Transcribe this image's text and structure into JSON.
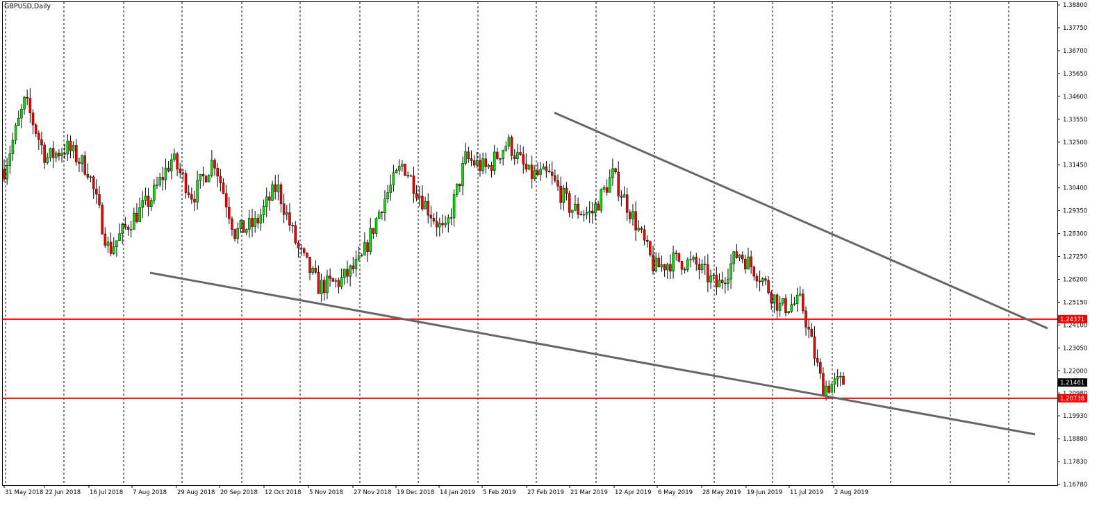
{
  "title": "GBPUSD,Daily",
  "colors": {
    "up": "#00e600",
    "down": "#ff0000",
    "wick": "#000000",
    "grid": "#000000",
    "hline": "#ff0000",
    "trendline": "#666666",
    "price_badge_bg": "#000000",
    "price_badge_fg": "#ffffff",
    "level_badge_bg": "#ff0000",
    "level_badge_fg": "#ffffff"
  },
  "chart_data": {
    "type": "candlestick",
    "symbol": "GBPUSD",
    "timeframe": "Daily",
    "ylim": [
      1.1675,
      1.3893
    ],
    "y_ticks": [
      "1.38800",
      "1.37750",
      "1.36700",
      "1.35650",
      "1.34600",
      "1.33550",
      "1.32500",
      "1.31450",
      "1.30400",
      "1.29350",
      "1.28300",
      "1.27250",
      "1.26200",
      "1.25150",
      "1.24100",
      "1.23050",
      "1.22000",
      "1.20980",
      "1.19930",
      "1.18880",
      "1.17830",
      "1.16780"
    ],
    "x_ticks": [
      "31 May 2018",
      "22 Jun 2018",
      "16 Jul 2018",
      "7 Aug 2018",
      "29 Aug 2018",
      "20 Sep 2018",
      "12 Oct 2018",
      "5 Nov 2018",
      "27 Nov 2018",
      "19 Dec 2018",
      "14 Jan 2019",
      "5 Feb 2019",
      "27 Feb 2019",
      "21 Mar 2019",
      "12 Apr 2019",
      "6 May 2019",
      "28 May 2019",
      "19 Jun 2019",
      "11 Jul 2019",
      "2 Aug 2019"
    ],
    "horizontal_levels": [
      {
        "label": "1.24371",
        "value": 1.24371
      },
      {
        "label": "1.20738",
        "value": 1.20738
      }
    ],
    "current_price": {
      "label": "1.21461",
      "value": 1.21461
    },
    "trendlines": [
      {
        "name": "upper",
        "start": {
          "x": "27 Feb 2019",
          "y": 1.3385
        },
        "end": {
          "x": "beyond 2 Aug 2019",
          "y": 1.2395
        }
      },
      {
        "name": "lower",
        "start": {
          "x": "7 Aug 2018",
          "y": 1.265
        },
        "end": {
          "x": "beyond 2 Aug 2019",
          "y": 1.1908
        }
      }
    ],
    "series_anchors": [
      [
        1.295,
        1.33
      ],
      [
        1.346,
        1.342
      ],
      [
        1.325,
        1.31
      ],
      [
        1.32,
        1.325
      ],
      [
        1.31,
        1.315
      ],
      [
        1.28,
        1.27
      ],
      [
        1.285,
        1.292
      ],
      [
        1.298,
        1.3
      ],
      [
        1.325,
        1.31
      ],
      [
        1.305,
        1.295
      ],
      [
        1.32,
        1.315
      ],
      [
        1.292,
        1.275
      ],
      [
        1.285,
        1.29
      ],
      [
        1.304,
        1.306
      ],
      [
        1.28,
        1.272
      ],
      [
        1.265,
        1.252
      ],
      [
        1.26,
        1.262
      ],
      [
        1.265,
        1.275
      ],
      [
        1.288,
        1.305
      ],
      [
        1.32,
        1.31
      ],
      [
        1.295,
        1.3
      ],
      [
        1.28,
        1.285
      ],
      [
        1.305,
        1.33
      ],
      [
        1.31,
        1.315
      ],
      [
        1.33,
        1.32
      ],
      [
        1.315,
        1.305
      ],
      [
        1.31,
        1.309
      ],
      [
        1.296,
        1.293
      ],
      [
        1.288,
        1.296
      ],
      [
        1.315,
        1.305
      ],
      [
        1.295,
        1.285
      ],
      [
        1.272,
        1.262
      ],
      [
        1.27,
        1.272
      ],
      [
        1.273,
        1.264
      ],
      [
        1.262,
        1.255
      ],
      [
        1.274,
        1.275
      ],
      [
        1.27,
        1.258
      ],
      [
        1.25,
        1.248
      ],
      [
        1.256,
        1.247
      ],
      [
        1.215,
        1.21
      ],
      [
        1.215,
        1.2146
      ]
    ]
  }
}
